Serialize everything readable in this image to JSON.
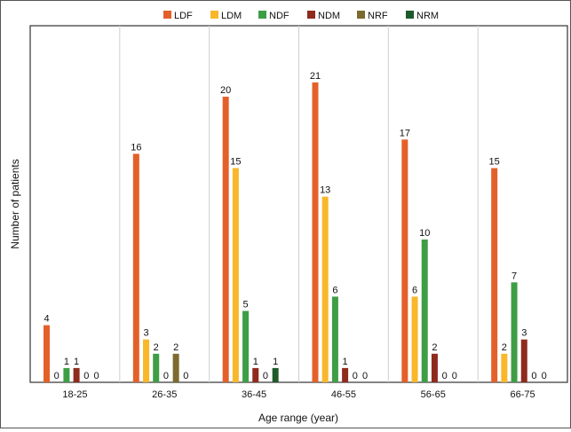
{
  "chart_data": {
    "type": "bar",
    "title": "",
    "xlabel": "Age range (year)",
    "ylabel": "Number of patients",
    "ylim": [
      0,
      22
    ],
    "grid": "vertical separators between categories",
    "legend_position": "top",
    "categories": [
      "18-25",
      "26-35",
      "36-45",
      "46-55",
      "56-65",
      "66-75"
    ],
    "series": [
      {
        "name": "LDF",
        "color": "#E4602A",
        "values": [
          4,
          16,
          20,
          21,
          17,
          15
        ]
      },
      {
        "name": "LDM",
        "color": "#F9B72A",
        "values": [
          0,
          3,
          15,
          13,
          6,
          2
        ]
      },
      {
        "name": "NDF",
        "color": "#3E9E46",
        "values": [
          1,
          2,
          5,
          6,
          10,
          7
        ]
      },
      {
        "name": "NDM",
        "color": "#8F2A1E",
        "values": [
          1,
          0,
          1,
          1,
          2,
          3
        ]
      },
      {
        "name": "NRF",
        "color": "#7C6A2E",
        "values": [
          0,
          2,
          0,
          0,
          0,
          0
        ]
      },
      {
        "name": "NRM",
        "color": "#1F5A2A",
        "values": [
          0,
          0,
          1,
          0,
          0,
          0
        ]
      }
    ]
  }
}
